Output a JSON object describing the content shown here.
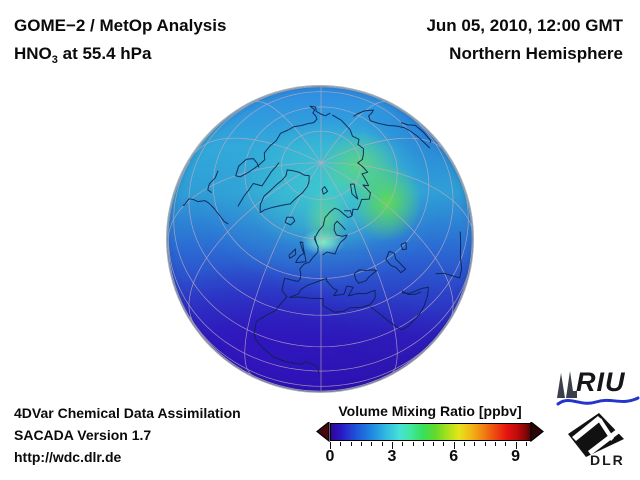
{
  "header": {
    "title_line1": "GOME−2 / MetOp Analysis",
    "species": "HNO",
    "species_sub": "3",
    "level_suffix": " at 55.4 hPa",
    "datetime": "Jun 05, 2010, 12:00 GMT",
    "hemisphere": "Northern Hemisphere"
  },
  "footer": {
    "line1": "4DVar Chemical Data Assimilation",
    "line2": "SACADA Version 1.7",
    "line3": "http://wdc.dlr.de"
  },
  "colorbar": {
    "title": "Volume Mixing Ratio [ppbv]",
    "tick_labels": [
      "0",
      "3",
      "6",
      "9"
    ],
    "tick_values": [
      0,
      3,
      6,
      9
    ],
    "min": 0,
    "max": 9.7,
    "minor_step": 0.5,
    "underflow_color": "#46080f",
    "overflow_color": "#2d0505",
    "gradient": [
      "#2e079c 0%",
      "#2b17c4 5%",
      "#204fd8 12%",
      "#1e86e0 20%",
      "#2fb6e2 27%",
      "#46e0d8 34%",
      "#3fe89e 40%",
      "#37e05a 46%",
      "#62d82c 52%",
      "#a6e01e 58%",
      "#e6e41a 64%",
      "#f2b714 70%",
      "#f08312 76%",
      "#ee4910 82%",
      "#e41410 88%",
      "#c00b0b 93%",
      "#8a0707 97%",
      "#4a0404 100%"
    ]
  },
  "logos": {
    "riu": "RIU",
    "dlr": "DLR"
  },
  "chart_data": {
    "type": "heatmap",
    "title": "GOME−2 / MetOp Analysis — HNO3 at 55.4 hPa, Jun 05, 2010, 12:00 GMT, Northern Hemisphere",
    "projection": "orthographic globe, Northern Hemisphere, centered near 60N 10E, North Pole in upper middle",
    "colorbar": {
      "label": "Volume Mixing Ratio [ppbv]",
      "tick_values": [
        0,
        3,
        6,
        9
      ],
      "range_shown": [
        0,
        9.7
      ],
      "orientation": "horizontal",
      "underflow_arrow": true,
      "overflow_arrow": true
    },
    "field_estimates_ppbv": [
      {
        "region": "central Siberia / Arctic Russia (green maximum)",
        "value": 4.5
      },
      {
        "region": "near North Pole and Svalbard",
        "value": 3.5
      },
      {
        "region": "Scandinavia local bright cyan patch",
        "value": 3.5
      },
      {
        "region": "high-latitude ring 55-75N",
        "value": 3.0
      },
      {
        "region": "mid-latitudes 40-55N (North Atlantic, Europe, Canada)",
        "value": 2.0
      },
      {
        "region": "subtropics 20-35N (Mediterranean, North Africa)",
        "value": 1.0
      },
      {
        "region": "tropics near the limb (south edge of globe)",
        "value": 0.6
      }
    ],
    "legend_position": "bottom-center",
    "grid": "graticule every 30 deg longitude / 15 deg latitude"
  }
}
